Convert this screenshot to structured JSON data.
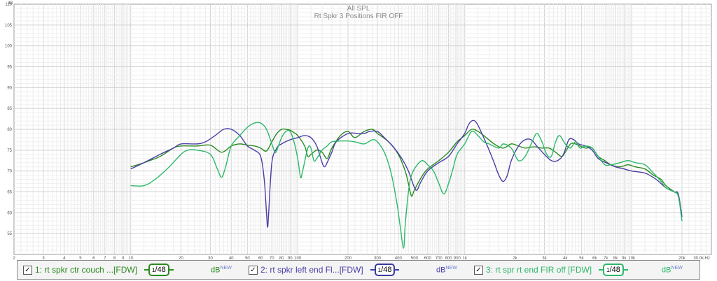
{
  "chart_data": {
    "type": "line",
    "title": "All SPL",
    "subtitle": "Rt Spkr 3 Positions FIR OFF",
    "ylabel": "dB",
    "xlabel": "",
    "xscale": "log",
    "xlim": [
      2,
      30000
    ],
    "ylim": [
      50,
      110
    ],
    "yticks": [
      55,
      60,
      65,
      70,
      75,
      80,
      85,
      90,
      95,
      100,
      105,
      110
    ],
    "xticks": [
      {
        "v": 2,
        "t": "2"
      },
      {
        "v": 3,
        "t": "3"
      },
      {
        "v": 4,
        "t": "4"
      },
      {
        "v": 5,
        "t": "5"
      },
      {
        "v": 6,
        "t": "6"
      },
      {
        "v": 7,
        "t": "7"
      },
      {
        "v": 8,
        "t": "8"
      },
      {
        "v": 9,
        "t": "9"
      },
      {
        "v": 10,
        "t": "10"
      },
      {
        "v": 20,
        "t": "20"
      },
      {
        "v": 30,
        "t": "30"
      },
      {
        "v": 40,
        "t": "40"
      },
      {
        "v": 50,
        "t": "50"
      },
      {
        "v": 60,
        "t": "60"
      },
      {
        "v": 70,
        "t": "70"
      },
      {
        "v": 80,
        "t": "80"
      },
      {
        "v": 90,
        "t": "90"
      },
      {
        "v": 100,
        "t": "100"
      },
      {
        "v": 200,
        "t": "200"
      },
      {
        "v": 300,
        "t": "300"
      },
      {
        "v": 400,
        "t": "400"
      },
      {
        "v": 500,
        "t": "500"
      },
      {
        "v": 600,
        "t": "600"
      },
      {
        "v": 700,
        "t": "700"
      },
      {
        "v": 800,
        "t": "800"
      },
      {
        "v": 900,
        "t": "900"
      },
      {
        "v": 1000,
        "t": "1k"
      },
      {
        "v": 2000,
        "t": "2k"
      },
      {
        "v": 3000,
        "t": "3k"
      },
      {
        "v": 4000,
        "t": "4k"
      },
      {
        "v": 5000,
        "t": "5k"
      },
      {
        "v": 6000,
        "t": "6k"
      },
      {
        "v": 7000,
        "t": "7k"
      },
      {
        "v": 8000,
        "t": "8k"
      },
      {
        "v": 9000,
        "t": "9k"
      },
      {
        "v": 10000,
        "t": "10k"
      },
      {
        "v": 20000,
        "t": "20k"
      },
      {
        "v": 30000,
        "t": "30.0k Hz"
      }
    ],
    "grid": true,
    "legend": "bottom",
    "series": [
      {
        "name": "1: rt spkr ctr couch ...[FDW]",
        "color": "#2a8a1e",
        "points": [
          [
            10,
            71
          ],
          [
            12,
            72
          ],
          [
            15,
            73.5
          ],
          [
            18,
            75.5
          ],
          [
            20,
            76
          ],
          [
            25,
            76
          ],
          [
            30,
            76.2
          ],
          [
            35,
            74.5
          ],
          [
            40,
            76
          ],
          [
            45,
            76.5
          ],
          [
            50,
            76.2
          ],
          [
            55,
            76
          ],
          [
            60,
            75.5
          ],
          [
            65,
            74.8
          ],
          [
            70,
            77
          ],
          [
            75,
            79
          ],
          [
            80,
            80
          ],
          [
            85,
            80
          ],
          [
            90,
            79.8
          ],
          [
            95,
            79.2
          ],
          [
            100,
            78.5
          ],
          [
            110,
            76
          ],
          [
            115,
            73.5
          ],
          [
            120,
            74
          ],
          [
            130,
            75
          ],
          [
            140,
            74.5
          ],
          [
            150,
            73
          ],
          [
            160,
            75.5
          ],
          [
            180,
            78.5
          ],
          [
            200,
            79.5
          ],
          [
            220,
            78
          ],
          [
            250,
            79.5
          ],
          [
            280,
            80
          ],
          [
            300,
            79
          ],
          [
            350,
            77
          ],
          [
            400,
            74
          ],
          [
            440,
            70
          ],
          [
            460,
            67
          ],
          [
            480,
            64
          ],
          [
            500,
            65.5
          ],
          [
            550,
            68.5
          ],
          [
            600,
            70.5
          ],
          [
            700,
            72.5
          ],
          [
            800,
            74.5
          ],
          [
            900,
            77
          ],
          [
            1000,
            78.5
          ],
          [
            1100,
            80
          ],
          [
            1200,
            79.5
          ],
          [
            1300,
            78.5
          ],
          [
            1500,
            76.5
          ],
          [
            1700,
            75.5
          ],
          [
            1900,
            76.5
          ],
          [
            2100,
            76
          ],
          [
            2300,
            75.5
          ],
          [
            2600,
            75.8
          ],
          [
            2900,
            75.5
          ],
          [
            3200,
            75.5
          ],
          [
            3500,
            74.5
          ],
          [
            3800,
            73.5
          ],
          [
            4000,
            74.5
          ],
          [
            4300,
            76.5
          ],
          [
            4600,
            76.5
          ],
          [
            4900,
            76
          ],
          [
            5300,
            75.5
          ],
          [
            5800,
            75.5
          ],
          [
            6300,
            73.5
          ],
          [
            6900,
            72.5
          ],
          [
            7500,
            71.5
          ],
          [
            8500,
            71
          ],
          [
            9500,
            71.5
          ],
          [
            10500,
            71
          ],
          [
            12000,
            70.5
          ],
          [
            13500,
            69
          ],
          [
            15000,
            68
          ],
          [
            16000,
            66.5
          ],
          [
            18000,
            65
          ],
          [
            19000,
            64
          ],
          [
            20000,
            59
          ]
        ]
      },
      {
        "name": "2: rt spkr left end Fl...[FDW]",
        "color": "#4a3fa6",
        "points": [
          [
            10,
            70.5
          ],
          [
            12,
            72
          ],
          [
            15,
            74
          ],
          [
            18,
            75.5
          ],
          [
            20,
            76.5
          ],
          [
            25,
            76.5
          ],
          [
            28,
            77
          ],
          [
            32,
            78.5
          ],
          [
            36,
            80
          ],
          [
            40,
            80
          ],
          [
            45,
            78.5
          ],
          [
            50,
            76
          ],
          [
            55,
            75
          ],
          [
            60,
            73.5
          ],
          [
            63,
            68
          ],
          [
            65,
            60
          ],
          [
            66,
            56.5
          ],
          [
            67,
            60
          ],
          [
            70,
            72
          ],
          [
            75,
            75.5
          ],
          [
            80,
            76.5
          ],
          [
            90,
            77.5
          ],
          [
            100,
            78
          ],
          [
            110,
            78.5
          ],
          [
            120,
            78
          ],
          [
            130,
            76
          ],
          [
            140,
            72
          ],
          [
            145,
            71
          ],
          [
            150,
            72
          ],
          [
            160,
            74.5
          ],
          [
            170,
            77
          ],
          [
            200,
            79
          ],
          [
            230,
            79
          ],
          [
            250,
            79
          ],
          [
            270,
            79.5
          ],
          [
            300,
            79.5
          ],
          [
            330,
            78
          ],
          [
            370,
            76
          ],
          [
            420,
            73
          ],
          [
            460,
            70
          ],
          [
            500,
            66
          ],
          [
            520,
            65.5
          ],
          [
            540,
            67
          ],
          [
            600,
            70
          ],
          [
            700,
            72
          ],
          [
            800,
            73.5
          ],
          [
            900,
            76.5
          ],
          [
            1000,
            79
          ],
          [
            1050,
            81
          ],
          [
            1100,
            82
          ],
          [
            1150,
            82
          ],
          [
            1200,
            81
          ],
          [
            1300,
            78
          ],
          [
            1400,
            75
          ],
          [
            1500,
            72
          ],
          [
            1600,
            69
          ],
          [
            1700,
            67.5
          ],
          [
            1800,
            69
          ],
          [
            1900,
            72.5
          ],
          [
            2100,
            76
          ],
          [
            2300,
            77.5
          ],
          [
            2500,
            77.5
          ],
          [
            2700,
            76
          ],
          [
            3000,
            74
          ],
          [
            3300,
            72.5
          ],
          [
            3600,
            72.5
          ],
          [
            3900,
            74
          ],
          [
            4200,
            77.5
          ],
          [
            4500,
            77.5
          ],
          [
            4800,
            76.5
          ],
          [
            5300,
            76
          ],
          [
            5800,
            75
          ],
          [
            6300,
            73
          ],
          [
            7000,
            72
          ],
          [
            8000,
            71
          ],
          [
            9000,
            70.5
          ],
          [
            10000,
            70
          ],
          [
            12000,
            69.5
          ],
          [
            14000,
            68
          ],
          [
            16000,
            66
          ],
          [
            18000,
            65
          ],
          [
            19000,
            64.5
          ],
          [
            20000,
            59
          ]
        ]
      },
      {
        "name": "3: rt spr rt end FIR off [FDW]",
        "color": "#2db86a",
        "points": [
          [
            10,
            66.5
          ],
          [
            12,
            66.5
          ],
          [
            14,
            68
          ],
          [
            17,
            71
          ],
          [
            20,
            74
          ],
          [
            22,
            75
          ],
          [
            25,
            75
          ],
          [
            30,
            74
          ],
          [
            33,
            70.5
          ],
          [
            35,
            68.5
          ],
          [
            37,
            71
          ],
          [
            40,
            76
          ],
          [
            45,
            78.5
          ],
          [
            50,
            80.5
          ],
          [
            55,
            81.5
          ],
          [
            60,
            81.5
          ],
          [
            65,
            80
          ],
          [
            70,
            76.5
          ],
          [
            73,
            74.5
          ],
          [
            75,
            75
          ],
          [
            80,
            78
          ],
          [
            85,
            79.5
          ],
          [
            90,
            79.5
          ],
          [
            95,
            77
          ],
          [
            100,
            73
          ],
          [
            104,
            68.5
          ],
          [
            107,
            70
          ],
          [
            115,
            75.5
          ],
          [
            120,
            75.5
          ],
          [
            125,
            72.5
          ],
          [
            130,
            73
          ],
          [
            140,
            75
          ],
          [
            150,
            76
          ],
          [
            160,
            77
          ],
          [
            180,
            77.2
          ],
          [
            200,
            77.2
          ],
          [
            220,
            77
          ],
          [
            250,
            76.5
          ],
          [
            280,
            77.5
          ],
          [
            300,
            77
          ],
          [
            330,
            74.5
          ],
          [
            360,
            70
          ],
          [
            390,
            63
          ],
          [
            410,
            57
          ],
          [
            430,
            51.5
          ],
          [
            440,
            57
          ],
          [
            460,
            65
          ],
          [
            480,
            69
          ],
          [
            520,
            71.5
          ],
          [
            560,
            72.5
          ],
          [
            600,
            71.5
          ],
          [
            650,
            70
          ],
          [
            700,
            67
          ],
          [
            750,
            64.5
          ],
          [
            800,
            67
          ],
          [
            850,
            70.5
          ],
          [
            900,
            74
          ],
          [
            1000,
            76.5
          ],
          [
            1100,
            79.5
          ],
          [
            1200,
            78.5
          ],
          [
            1300,
            77
          ],
          [
            1400,
            76.5
          ],
          [
            1600,
            75.5
          ],
          [
            1700,
            76.5
          ],
          [
            1900,
            75.5
          ],
          [
            2100,
            72.5
          ],
          [
            2300,
            73.5
          ],
          [
            2500,
            76.5
          ],
          [
            2700,
            79
          ],
          [
            2900,
            77
          ],
          [
            3100,
            74
          ],
          [
            3300,
            73.5
          ],
          [
            3500,
            77
          ],
          [
            3700,
            78.5
          ],
          [
            4000,
            76.5
          ],
          [
            4300,
            75.5
          ],
          [
            4600,
            77
          ],
          [
            4900,
            75.5
          ],
          [
            5300,
            76
          ],
          [
            5800,
            75.5
          ],
          [
            6300,
            73.5
          ],
          [
            6900,
            71.5
          ],
          [
            7500,
            71.5
          ],
          [
            8500,
            72
          ],
          [
            9500,
            72.5
          ],
          [
            10500,
            72
          ],
          [
            12000,
            71.5
          ],
          [
            13500,
            69.5
          ],
          [
            15000,
            67.5
          ],
          [
            16000,
            66
          ],
          [
            18000,
            65
          ],
          [
            19000,
            64
          ],
          [
            20000,
            58
          ]
        ]
      }
    ]
  },
  "legend": {
    "entries": [
      {
        "label": "1: rt spkr ctr couch ...[FDW]",
        "color": "#2a8a1e",
        "smooth_color": "#2a8a1e"
      },
      {
        "label": "2: rt spkr left end Fl...[FDW]",
        "color": "#4a3fa6",
        "smooth_color": "#3a3aa0"
      },
      {
        "label": "3: rt spr rt end FIR off [FDW]",
        "color": "#2db86a",
        "smooth_color": "#2db86a"
      }
    ],
    "checkmark": "✓",
    "smooth_num": "1",
    "smooth_sep": "/",
    "smooth_den": "48",
    "db_label": "dB",
    "db_new": "NEW"
  }
}
